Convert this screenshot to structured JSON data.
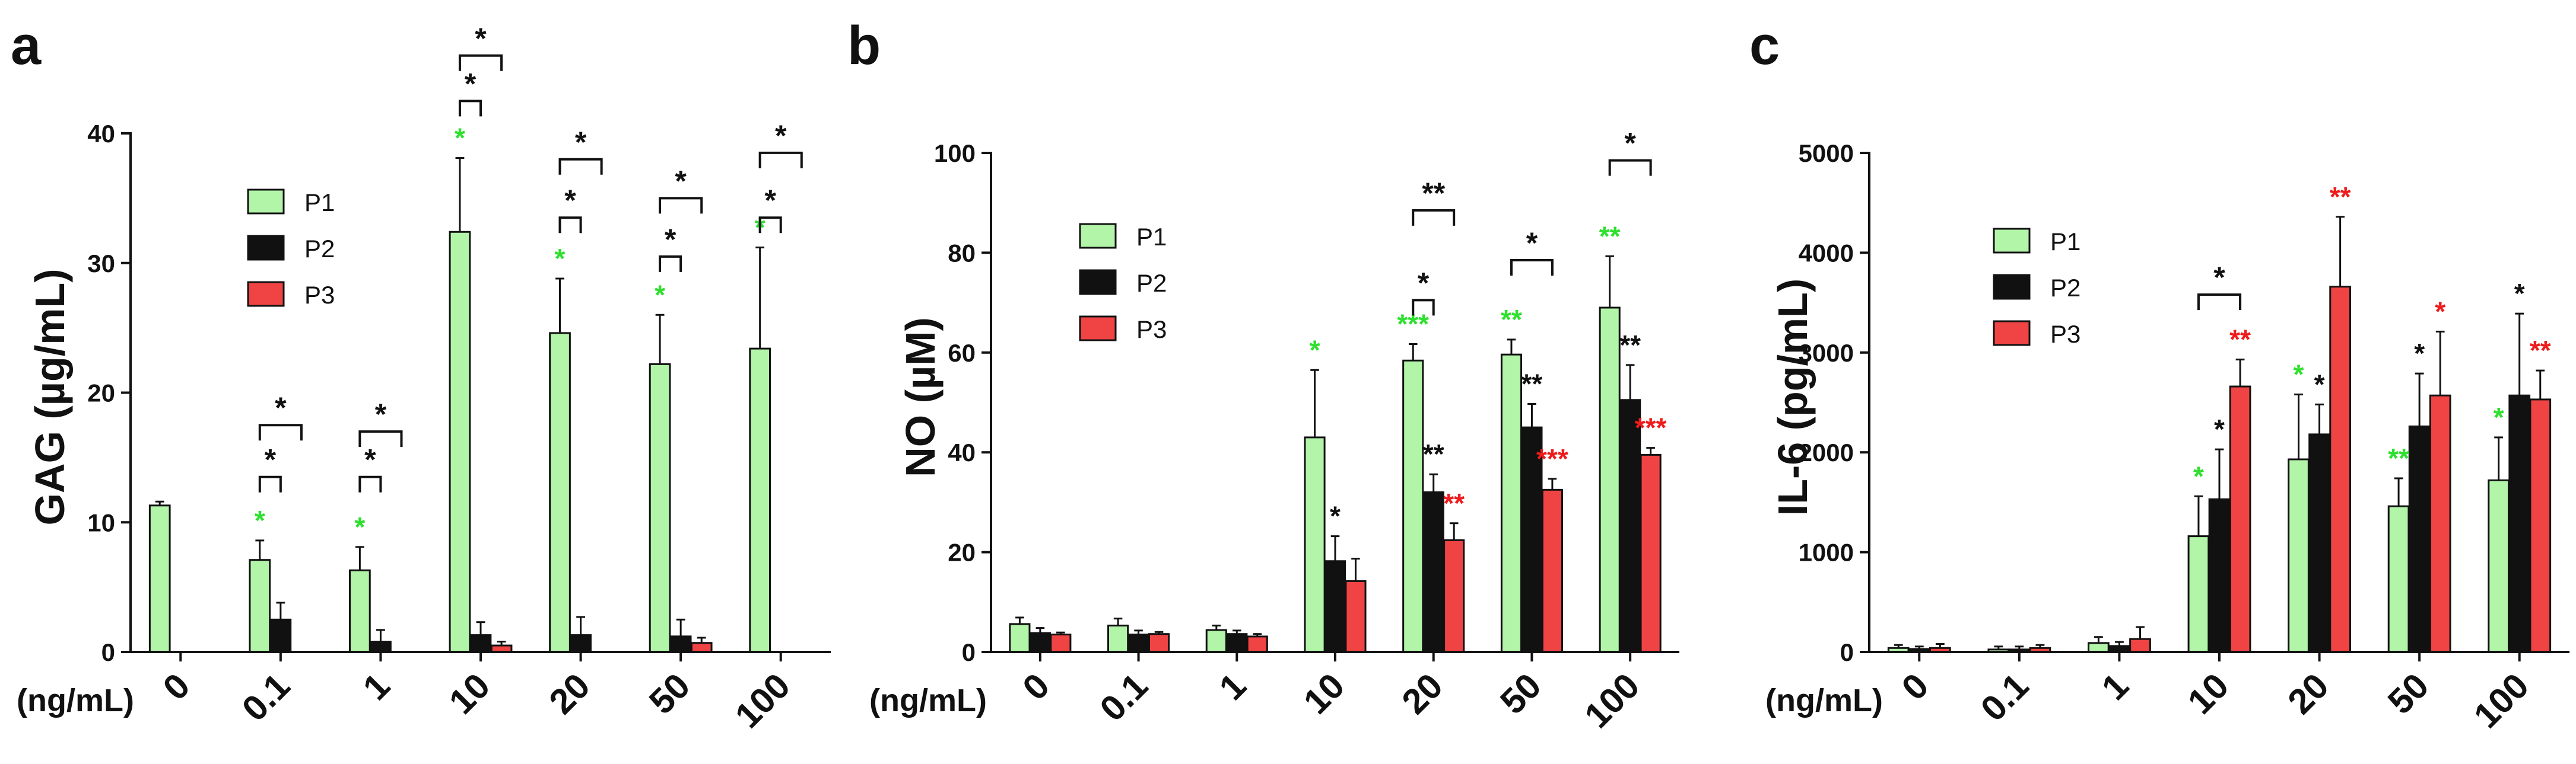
{
  "colors": {
    "P1": "#b2f5a9",
    "P2": "#111111",
    "P3": "#f04444",
    "sig_green": "#2ee02e",
    "sig_black": "#111111",
    "sig_red": "#ee1c1c"
  },
  "x_unit_label": "(ng/mL)",
  "chart_data": [
    {
      "type": "bar",
      "panel_label": "a",
      "ylabel": "GAG (µg/mL)",
      "ylim": [
        0,
        40
      ],
      "yticks": [
        "0",
        "10",
        "20",
        "30",
        "40"
      ],
      "categories": [
        "0",
        "0.1",
        "1",
        "10",
        "20",
        "50",
        "100"
      ],
      "legend": [
        "P1",
        "P2",
        "P3"
      ],
      "series": [
        {
          "name": "P1",
          "values": [
            11.3,
            7.1,
            6.3,
            32.4,
            24.6,
            22.2,
            23.4
          ],
          "errors": [
            0.3,
            1.5,
            1.8,
            5.7,
            4.2,
            3.8,
            7.8
          ]
        },
        {
          "name": "P2",
          "values": [
            0,
            2.5,
            0.8,
            1.3,
            1.3,
            1.2,
            0
          ],
          "errors": [
            0,
            1.3,
            0.9,
            1.0,
            1.4,
            1.3,
            0
          ]
        },
        {
          "name": "P3",
          "values": [
            0,
            0,
            0,
            0.5,
            0,
            0.7,
            0
          ],
          "errors": [
            0,
            0,
            0,
            0.3,
            0,
            0.4,
            0
          ]
        }
      ],
      "significance": [
        {
          "category": 1,
          "series": 0,
          "text": "*"
        },
        {
          "category": 2,
          "series": 0,
          "text": "*"
        },
        {
          "category": 3,
          "series": 0,
          "text": "*"
        },
        {
          "category": 4,
          "series": 0,
          "text": "*"
        },
        {
          "category": 5,
          "series": 0,
          "text": "*"
        },
        {
          "category": 6,
          "series": 0,
          "text": "*"
        }
      ],
      "brackets": [
        {
          "category": 1,
          "from": 0,
          "to": 1,
          "value": 13.5,
          "text": "*"
        },
        {
          "category": 1,
          "from": 0,
          "to": 2,
          "value": 17.5,
          "text": "*"
        },
        {
          "category": 2,
          "from": 0,
          "to": 1,
          "value": 13.5,
          "text": "*"
        },
        {
          "category": 2,
          "from": 0,
          "to": 2,
          "value": 17.0,
          "text": "*"
        },
        {
          "category": 3,
          "from": 0,
          "to": 1,
          "value": 42.5,
          "text": "*"
        },
        {
          "category": 3,
          "from": 0,
          "to": 2,
          "value": 46.0,
          "text": "*"
        },
        {
          "category": 4,
          "from": 0,
          "to": 1,
          "value": 33.5,
          "text": "*"
        },
        {
          "category": 4,
          "from": 0,
          "to": 2,
          "value": 38.0,
          "text": "*"
        },
        {
          "category": 5,
          "from": 0,
          "to": 1,
          "value": 30.5,
          "text": "*"
        },
        {
          "category": 5,
          "from": 0,
          "to": 2,
          "value": 35.0,
          "text": "*"
        },
        {
          "category": 6,
          "from": 0,
          "to": 1,
          "value": 33.5,
          "text": "*"
        },
        {
          "category": 6,
          "from": 0,
          "to": 2,
          "value": 38.5,
          "text": "*"
        }
      ]
    },
    {
      "type": "bar",
      "panel_label": "b",
      "ylabel": "NO (µM)",
      "ylim": [
        0,
        100
      ],
      "yticks": [
        "0",
        "20",
        "40",
        "60",
        "80",
        "100"
      ],
      "categories": [
        "0",
        "0.1",
        "1",
        "10",
        "20",
        "50",
        "100"
      ],
      "legend": [
        "P1",
        "P2",
        "P3"
      ],
      "series": [
        {
          "name": "P1",
          "values": [
            5.6,
            5.3,
            4.4,
            43.0,
            58.4,
            59.6,
            69.0
          ],
          "errors": [
            1.3,
            1.4,
            0.9,
            13.5,
            3.3,
            3.0,
            10.3
          ]
        },
        {
          "name": "P2",
          "values": [
            3.8,
            3.5,
            3.6,
            18.2,
            32.0,
            45.0,
            50.5
          ],
          "errors": [
            1.0,
            0.8,
            0.7,
            5.0,
            3.6,
            4.7,
            7.0
          ]
        },
        {
          "name": "P3",
          "values": [
            3.5,
            3.6,
            3.1,
            14.2,
            22.4,
            32.5,
            39.5
          ],
          "errors": [
            0.4,
            0.4,
            0.5,
            4.5,
            3.4,
            2.2,
            1.4
          ]
        }
      ],
      "significance": [
        {
          "category": 3,
          "series": 0,
          "text": "*"
        },
        {
          "category": 3,
          "series": 1,
          "text": "*"
        },
        {
          "category": 4,
          "series": 0,
          "text": "***"
        },
        {
          "category": 4,
          "series": 1,
          "text": "**"
        },
        {
          "category": 4,
          "series": 2,
          "text": "**"
        },
        {
          "category": 5,
          "series": 0,
          "text": "**"
        },
        {
          "category": 5,
          "series": 1,
          "text": "**"
        },
        {
          "category": 5,
          "series": 2,
          "text": "***"
        },
        {
          "category": 6,
          "series": 0,
          "text": "**"
        },
        {
          "category": 6,
          "series": 1,
          "text": "**"
        },
        {
          "category": 6,
          "series": 2,
          "text": "***"
        }
      ],
      "brackets": [
        {
          "category": 4,
          "from": 0,
          "to": 1,
          "value": 70.5,
          "text": "*"
        },
        {
          "category": 4,
          "from": 0,
          "to": 2,
          "value": 88.5,
          "text": "**"
        },
        {
          "category": 5,
          "from": 0,
          "to": 2,
          "value": 78.5,
          "text": "*"
        },
        {
          "category": 6,
          "from": 0,
          "to": 2,
          "value": 98.5,
          "text": "*"
        }
      ]
    },
    {
      "type": "bar",
      "panel_label": "c",
      "ylabel": "IL-6 (pg/mL)",
      "ylim": [
        0,
        5000
      ],
      "yticks": [
        "0",
        "1000",
        "2000",
        "3000",
        "4000",
        "5000"
      ],
      "categories": [
        "0",
        "0.1",
        "1",
        "10",
        "20",
        "50",
        "100"
      ],
      "legend": [
        "P1",
        "P2",
        "P3"
      ],
      "series": [
        {
          "name": "P1",
          "values": [
            40,
            25,
            90,
            1160,
            1930,
            1460,
            1720
          ],
          "errors": [
            30,
            30,
            60,
            400,
            650,
            280,
            430
          ]
        },
        {
          "name": "P2",
          "values": [
            30,
            25,
            60,
            1530,
            2180,
            2260,
            2570
          ],
          "errors": [
            25,
            30,
            40,
            500,
            300,
            530,
            820
          ]
        },
        {
          "name": "P3",
          "values": [
            40,
            40,
            130,
            2660,
            3660,
            2570,
            2530
          ],
          "errors": [
            40,
            30,
            120,
            270,
            700,
            640,
            290
          ]
        }
      ],
      "significance": [
        {
          "category": 3,
          "series": 0,
          "text": "*"
        },
        {
          "category": 3,
          "series": 1,
          "text": "*"
        },
        {
          "category": 3,
          "series": 2,
          "text": "**"
        },
        {
          "category": 4,
          "series": 0,
          "text": "*"
        },
        {
          "category": 4,
          "series": 1,
          "text": "*"
        },
        {
          "category": 4,
          "series": 2,
          "text": "**"
        },
        {
          "category": 5,
          "series": 0,
          "text": "**"
        },
        {
          "category": 5,
          "series": 1,
          "text": "*"
        },
        {
          "category": 5,
          "series": 2,
          "text": "*"
        },
        {
          "category": 6,
          "series": 0,
          "text": "*"
        },
        {
          "category": 6,
          "series": 1,
          "text": "*"
        },
        {
          "category": 6,
          "series": 2,
          "text": "**"
        }
      ],
      "brackets": [
        {
          "category": 3,
          "from": 0,
          "to": 2,
          "value": 3580,
          "text": "*"
        }
      ]
    }
  ]
}
